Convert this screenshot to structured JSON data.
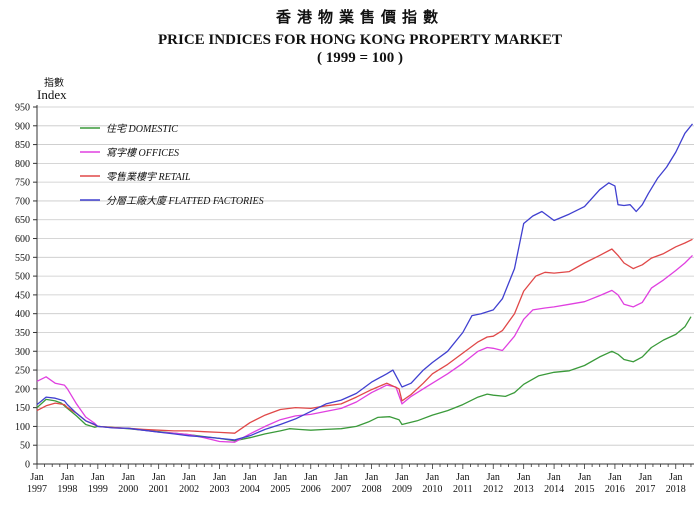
{
  "titles": {
    "zh": "香港物業售價指數",
    "en": "PRICE INDICES FOR HONG KONG PROPERTY MARKET",
    "sub": "( 1999 = 100 )"
  },
  "y_axis": {
    "label_zh": "指數",
    "label_en": "Index"
  },
  "colors": {
    "domestic": "#3a9a3a",
    "offices": "#e040e0",
    "retail": "#e04848",
    "factories": "#4040d0",
    "grid": "#c8c8c8",
    "axis": "#333333"
  },
  "chart_data": {
    "type": "line",
    "title": "PRICE INDICES FOR HONG KONG PROPERTY MARKET",
    "subtitle": "( 1999 = 100 )",
    "xlabel": "",
    "ylabel": "Index",
    "xlim": [
      1997.0,
      2018.6
    ],
    "ylim": [
      0,
      950
    ],
    "yticks": [
      0,
      50,
      100,
      150,
      200,
      250,
      300,
      350,
      400,
      450,
      500,
      550,
      600,
      650,
      700,
      750,
      800,
      850,
      900,
      950
    ],
    "grid": "horizontal",
    "legend_position": "top-left",
    "xticks": [
      {
        "year": 1997,
        "line1": "Jan",
        "line2": "1997"
      },
      {
        "year": 1998,
        "line1": "Jan",
        "line2": "1998"
      },
      {
        "year": 1999,
        "line1": "Jan",
        "line2": "1999"
      },
      {
        "year": 2000,
        "line1": "Jan",
        "line2": "2000"
      },
      {
        "year": 2001,
        "line1": "Jan",
        "line2": "2001"
      },
      {
        "year": 2002,
        "line1": "Jan",
        "line2": "2002"
      },
      {
        "year": 2003,
        "line1": "Jan",
        "line2": "2003"
      },
      {
        "year": 2004,
        "line1": "Jan",
        "line2": "2004"
      },
      {
        "year": 2005,
        "line1": "Jan",
        "line2": "2005"
      },
      {
        "year": 2006,
        "line1": "Jan",
        "line2": "2006"
      },
      {
        "year": 2007,
        "line1": "Jan",
        "line2": "2007"
      },
      {
        "year": 2008,
        "line1": "Jan",
        "line2": "2008"
      },
      {
        "year": 2009,
        "line1": "Jan",
        "line2": "2009"
      },
      {
        "year": 2010,
        "line1": "Jan",
        "line2": "2010"
      },
      {
        "year": 2011,
        "line1": "Jan",
        "line2": "2011"
      },
      {
        "year": 2012,
        "line1": "Jan",
        "line2": "2012"
      },
      {
        "year": 2013,
        "line1": "Jan",
        "line2": "2013"
      },
      {
        "year": 2014,
        "line1": "Jan",
        "line2": "2014"
      },
      {
        "year": 2015,
        "line1": "Jan",
        "line2": "2015"
      },
      {
        "year": 2016,
        "line1": "Jan",
        "line2": "2016"
      },
      {
        "year": 2017,
        "line1": "Jan",
        "line2": "2017"
      },
      {
        "year": 2018,
        "line1": "Jan",
        "line2": "2018"
      }
    ],
    "series": [
      {
        "name": "住宅 DOMESTIC",
        "key": "domestic",
        "points": [
          [
            1997.0,
            150
          ],
          [
            1997.3,
            172
          ],
          [
            1997.6,
            168
          ],
          [
            1997.8,
            162
          ],
          [
            1998.0,
            148
          ],
          [
            1998.3,
            128
          ],
          [
            1998.6,
            105
          ],
          [
            1998.9,
            98
          ],
          [
            1999.0,
            100
          ],
          [
            1999.5,
            97
          ],
          [
            2000.0,
            94
          ],
          [
            2000.5,
            90
          ],
          [
            2001.0,
            86
          ],
          [
            2001.5,
            82
          ],
          [
            2002.0,
            78
          ],
          [
            2002.5,
            73
          ],
          [
            2003.0,
            68
          ],
          [
            2003.5,
            62
          ],
          [
            2004.0,
            70
          ],
          [
            2004.5,
            80
          ],
          [
            2005.0,
            88
          ],
          [
            2005.3,
            94
          ],
          [
            2005.6,
            92
          ],
          [
            2006.0,
            90
          ],
          [
            2006.5,
            92
          ],
          [
            2007.0,
            94
          ],
          [
            2007.5,
            100
          ],
          [
            2007.9,
            112
          ],
          [
            2008.2,
            124
          ],
          [
            2008.6,
            126
          ],
          [
            2008.9,
            118
          ],
          [
            2009.0,
            105
          ],
          [
            2009.5,
            115
          ],
          [
            2010.0,
            130
          ],
          [
            2010.5,
            142
          ],
          [
            2011.0,
            158
          ],
          [
            2011.5,
            178
          ],
          [
            2011.8,
            186
          ],
          [
            2012.0,
            183
          ],
          [
            2012.4,
            180
          ],
          [
            2012.7,
            190
          ],
          [
            2013.0,
            212
          ],
          [
            2013.5,
            235
          ],
          [
            2014.0,
            244
          ],
          [
            2014.5,
            248
          ],
          [
            2015.0,
            262
          ],
          [
            2015.5,
            285
          ],
          [
            2015.9,
            300
          ],
          [
            2016.1,
            292
          ],
          [
            2016.3,
            278
          ],
          [
            2016.6,
            272
          ],
          [
            2016.9,
            285
          ],
          [
            2017.2,
            310
          ],
          [
            2017.6,
            330
          ],
          [
            2018.0,
            345
          ],
          [
            2018.3,
            365
          ],
          [
            2018.5,
            392
          ]
        ]
      },
      {
        "name": "寫字樓 OFFICES",
        "key": "offices",
        "points": [
          [
            1997.0,
            220
          ],
          [
            1997.3,
            232
          ],
          [
            1997.6,
            215
          ],
          [
            1997.9,
            210
          ],
          [
            1998.0,
            200
          ],
          [
            1998.3,
            160
          ],
          [
            1998.6,
            125
          ],
          [
            1998.9,
            108
          ],
          [
            1999.0,
            100
          ],
          [
            1999.5,
            96
          ],
          [
            2000.0,
            95
          ],
          [
            2000.5,
            90
          ],
          [
            2001.0,
            85
          ],
          [
            2001.5,
            82
          ],
          [
            2002.0,
            78
          ],
          [
            2002.5,
            70
          ],
          [
            2003.0,
            60
          ],
          [
            2003.5,
            58
          ],
          [
            2004.0,
            80
          ],
          [
            2004.5,
            100
          ],
          [
            2005.0,
            118
          ],
          [
            2005.5,
            128
          ],
          [
            2006.0,
            132
          ],
          [
            2006.5,
            140
          ],
          [
            2007.0,
            148
          ],
          [
            2007.5,
            165
          ],
          [
            2008.0,
            190
          ],
          [
            2008.5,
            210
          ],
          [
            2008.8,
            205
          ],
          [
            2009.0,
            160
          ],
          [
            2009.3,
            180
          ],
          [
            2009.7,
            200
          ],
          [
            2010.0,
            215
          ],
          [
            2010.5,
            240
          ],
          [
            2011.0,
            268
          ],
          [
            2011.5,
            300
          ],
          [
            2011.8,
            310
          ],
          [
            2012.0,
            308
          ],
          [
            2012.3,
            302
          ],
          [
            2012.7,
            340
          ],
          [
            2013.0,
            385
          ],
          [
            2013.3,
            410
          ],
          [
            2013.7,
            415
          ],
          [
            2014.0,
            418
          ],
          [
            2014.5,
            425
          ],
          [
            2015.0,
            432
          ],
          [
            2015.5,
            448
          ],
          [
            2015.9,
            462
          ],
          [
            2016.1,
            450
          ],
          [
            2016.3,
            425
          ],
          [
            2016.6,
            418
          ],
          [
            2016.9,
            430
          ],
          [
            2017.2,
            468
          ],
          [
            2017.6,
            490
          ],
          [
            2018.0,
            515
          ],
          [
            2018.3,
            535
          ],
          [
            2018.55,
            555
          ]
        ]
      },
      {
        "name": "零售業樓宇 RETAIL",
        "key": "retail",
        "points": [
          [
            1997.0,
            142
          ],
          [
            1997.3,
            155
          ],
          [
            1997.6,
            162
          ],
          [
            1997.9,
            158
          ],
          [
            1998.0,
            150
          ],
          [
            1998.3,
            135
          ],
          [
            1998.6,
            115
          ],
          [
            1998.9,
            104
          ],
          [
            1999.0,
            100
          ],
          [
            1999.5,
            97
          ],
          [
            2000.0,
            95
          ],
          [
            2000.5,
            92
          ],
          [
            2001.0,
            90
          ],
          [
            2001.5,
            88
          ],
          [
            2002.0,
            88
          ],
          [
            2002.5,
            86
          ],
          [
            2003.0,
            84
          ],
          [
            2003.5,
            82
          ],
          [
            2004.0,
            110
          ],
          [
            2004.5,
            130
          ],
          [
            2005.0,
            145
          ],
          [
            2005.5,
            150
          ],
          [
            2006.0,
            148
          ],
          [
            2006.5,
            155
          ],
          [
            2007.0,
            160
          ],
          [
            2007.5,
            178
          ],
          [
            2008.0,
            198
          ],
          [
            2008.5,
            215
          ],
          [
            2008.9,
            200
          ],
          [
            2009.0,
            168
          ],
          [
            2009.3,
            185
          ],
          [
            2009.7,
            215
          ],
          [
            2010.0,
            240
          ],
          [
            2010.5,
            265
          ],
          [
            2011.0,
            295
          ],
          [
            2011.5,
            325
          ],
          [
            2011.8,
            338
          ],
          [
            2012.0,
            340
          ],
          [
            2012.3,
            355
          ],
          [
            2012.7,
            400
          ],
          [
            2013.0,
            460
          ],
          [
            2013.4,
            500
          ],
          [
            2013.7,
            510
          ],
          [
            2014.0,
            508
          ],
          [
            2014.5,
            512
          ],
          [
            2015.0,
            535
          ],
          [
            2015.5,
            555
          ],
          [
            2015.9,
            572
          ],
          [
            2016.1,
            555
          ],
          [
            2016.3,
            535
          ],
          [
            2016.6,
            520
          ],
          [
            2016.9,
            530
          ],
          [
            2017.2,
            548
          ],
          [
            2017.6,
            560
          ],
          [
            2018.0,
            578
          ],
          [
            2018.3,
            588
          ],
          [
            2018.55,
            598
          ]
        ]
      },
      {
        "name": "分層工廠大廈 FLATTED FACTORIES",
        "key": "factories",
        "points": [
          [
            1997.0,
            158
          ],
          [
            1997.3,
            178
          ],
          [
            1997.6,
            175
          ],
          [
            1997.9,
            168
          ],
          [
            1998.0,
            158
          ],
          [
            1998.3,
            135
          ],
          [
            1998.6,
            115
          ],
          [
            1998.9,
            105
          ],
          [
            1999.0,
            100
          ],
          [
            1999.5,
            96
          ],
          [
            2000.0,
            95
          ],
          [
            2000.5,
            90
          ],
          [
            2001.0,
            85
          ],
          [
            2001.5,
            80
          ],
          [
            2002.0,
            75
          ],
          [
            2002.5,
            72
          ],
          [
            2003.0,
            68
          ],
          [
            2003.5,
            64
          ],
          [
            2004.0,
            75
          ],
          [
            2004.5,
            92
          ],
          [
            2005.0,
            105
          ],
          [
            2005.5,
            120
          ],
          [
            2006.0,
            140
          ],
          [
            2006.5,
            160
          ],
          [
            2007.0,
            170
          ],
          [
            2007.5,
            188
          ],
          [
            2008.0,
            218
          ],
          [
            2008.5,
            240
          ],
          [
            2008.7,
            250
          ],
          [
            2009.0,
            205
          ],
          [
            2009.3,
            215
          ],
          [
            2009.7,
            250
          ],
          [
            2010.0,
            270
          ],
          [
            2010.5,
            300
          ],
          [
            2011.0,
            350
          ],
          [
            2011.3,
            395
          ],
          [
            2011.6,
            400
          ],
          [
            2012.0,
            410
          ],
          [
            2012.3,
            440
          ],
          [
            2012.7,
            520
          ],
          [
            2013.0,
            640
          ],
          [
            2013.3,
            660
          ],
          [
            2013.6,
            672
          ],
          [
            2014.0,
            648
          ],
          [
            2014.5,
            665
          ],
          [
            2015.0,
            685
          ],
          [
            2015.5,
            730
          ],
          [
            2015.8,
            748
          ],
          [
            2016.0,
            740
          ],
          [
            2016.1,
            690
          ],
          [
            2016.3,
            688
          ],
          [
            2016.5,
            690
          ],
          [
            2016.7,
            672
          ],
          [
            2016.9,
            690
          ],
          [
            2017.1,
            720
          ],
          [
            2017.4,
            760
          ],
          [
            2017.7,
            790
          ],
          [
            2018.0,
            830
          ],
          [
            2018.3,
            880
          ],
          [
            2018.55,
            905
          ]
        ]
      }
    ]
  }
}
